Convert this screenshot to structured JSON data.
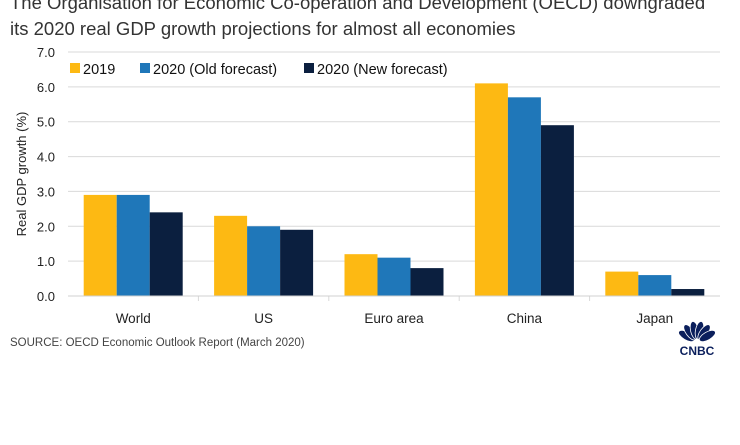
{
  "chart_data": {
    "type": "bar",
    "title_lines": [
      "The Organisation for Economic Co-operation and Development (OECD) downgraded",
      "its 2020 real GDP growth projections for almost all economies"
    ],
    "ylabel": "Real GDP growth (%)",
    "xlabel": "",
    "ylim": [
      0,
      7
    ],
    "yticks": [
      "0.0",
      "1.0",
      "2.0",
      "3.0",
      "4.0",
      "5.0",
      "6.0",
      "7.0"
    ],
    "grid": true,
    "legend_placement": "top-left",
    "categories": [
      "World",
      "US",
      "Euro area",
      "China",
      "Japan"
    ],
    "series": [
      {
        "name": "2019",
        "color": "#FDB913",
        "values": [
          2.9,
          2.3,
          1.2,
          6.1,
          0.7
        ]
      },
      {
        "name": "2020 (Old forecast)",
        "color": "#1F77B9",
        "values": [
          2.9,
          2.0,
          1.1,
          5.7,
          0.6
        ]
      },
      {
        "name": "2020 (New forecast)",
        "color": "#0B1F3F",
        "values": [
          2.4,
          1.9,
          0.8,
          4.9,
          0.2
        ]
      }
    ],
    "source": "SOURCE: OECD Economic Outlook Report (March 2020)"
  },
  "logo": {
    "text": "CNBC",
    "icon": "peacock-icon"
  }
}
